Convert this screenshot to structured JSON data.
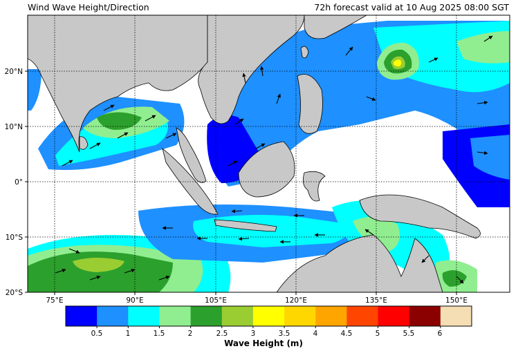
{
  "header": {
    "title": "Wind Wave Height/Direction",
    "valid_time": "72h forecast valid at 10 Aug 2025 08:00 SGT"
  },
  "map": {
    "lon_range": [
      68,
      158
    ],
    "lat_range": [
      -20,
      30
    ],
    "x_ticks": [
      {
        "value": 75,
        "label": "75°E"
      },
      {
        "value": 90,
        "label": "90°E"
      },
      {
        "value": 105,
        "label": "105°E"
      },
      {
        "value": 120,
        "label": "120°E"
      },
      {
        "value": 135,
        "label": "135°E"
      },
      {
        "value": 150,
        "label": "150°E"
      }
    ],
    "y_ticks": [
      {
        "value": 20,
        "label": "20°N"
      },
      {
        "value": 10,
        "label": "10°N"
      },
      {
        "value": 0,
        "label": "0°"
      },
      {
        "value": -10,
        "label": "10°S"
      },
      {
        "value": -20,
        "label": "20°S"
      }
    ],
    "gridlines": true,
    "land_color": "#c8c8c8",
    "sea_color": "#ffffff"
  },
  "colorbar": {
    "label": "Wave Height (m)",
    "colors": [
      "#0000ff",
      "#1e90ff",
      "#00ffff",
      "#90ee90",
      "#2ca02c",
      "#9acd32",
      "#ffff00",
      "#ffd700",
      "#ffa500",
      "#ff4500",
      "#ff0000",
      "#8b0000",
      "#f5deb3"
    ],
    "ticks": [
      "0.5",
      "1",
      "1.5",
      "2",
      "2.5",
      "3",
      "3.5",
      "4",
      "4.5",
      "5",
      "5.5",
      "6"
    ]
  }
}
